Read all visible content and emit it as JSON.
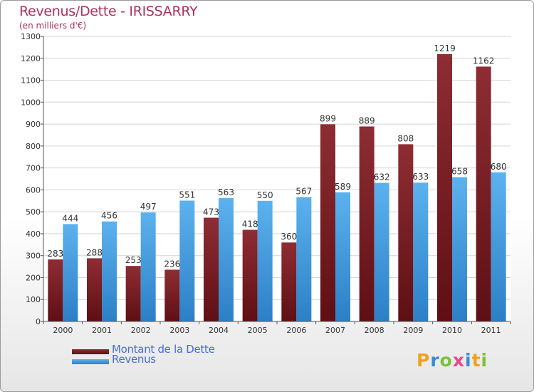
{
  "title": "Revenus/Dette - IRISSARRY",
  "subtitle": "(en milliers d'€)",
  "colors": {
    "dette": "#7a1c22",
    "revenus": "#4aa4e4",
    "title": "#b0305a",
    "legend_text": "#4a6cd8"
  },
  "chart_data": {
    "type": "bar",
    "categories": [
      "2000",
      "2001",
      "2002",
      "2003",
      "2004",
      "2005",
      "2006",
      "2007",
      "2008",
      "2009",
      "2010",
      "2011"
    ],
    "series": [
      {
        "name": "Montant de la Dette",
        "values": [
          283,
          288,
          253,
          236,
          473,
          418,
          360,
          899,
          889,
          808,
          1219,
          1162
        ]
      },
      {
        "name": "Revenus",
        "values": [
          444,
          456,
          497,
          551,
          563,
          550,
          567,
          589,
          632,
          633,
          658,
          680
        ]
      }
    ],
    "ylim": [
      0,
      1300
    ],
    "yticks": [
      0,
      100,
      200,
      300,
      400,
      500,
      600,
      700,
      800,
      900,
      1000,
      1100,
      1200,
      1300
    ],
    "grid": true,
    "legend_position": "bottom-left"
  },
  "logo": {
    "letters": [
      "P",
      "r",
      "o",
      "x",
      "i",
      "t",
      "i"
    ],
    "colors": [
      "#f0a020",
      "#3a8ad8",
      "#7ac23a",
      "#e84a8a",
      "#3a8ad8",
      "#f0a020",
      "#7ac23a"
    ]
  }
}
